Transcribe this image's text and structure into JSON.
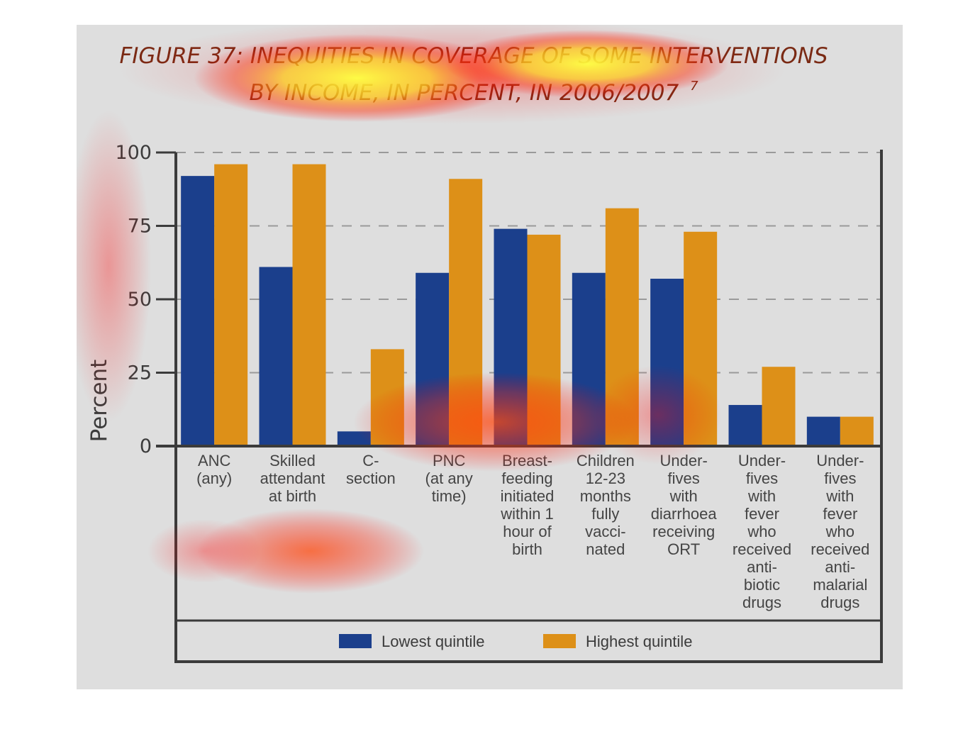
{
  "figure": {
    "title_line1": "FIGURE 37: INEQUITIES IN COVERAGE OF SOME INTERVENTIONS",
    "title_line2": "BY INCOME, IN PERCENT, IN 2006/2007",
    "title_ref": "7"
  },
  "colors": {
    "lowest": "#1b3f8c",
    "highest": "#dd9018",
    "panel": "#dedede",
    "axis": "#3b3b3b",
    "grid": "#9a9a9a"
  },
  "chart_data": {
    "type": "bar",
    "title": "FIGURE 37: INEQUITIES IN COVERAGE OF SOME INTERVENTIONS BY INCOME, IN PERCENT, IN 2006/2007",
    "xlabel": "",
    "ylabel": "Percent",
    "ylim": [
      0,
      100
    ],
    "yticks": [
      0,
      25,
      50,
      75,
      100
    ],
    "grid": "horizontal dashed",
    "legend_position": "bottom",
    "categories": [
      [
        "ANC",
        "(any)"
      ],
      [
        "Skilled",
        "attendant",
        "at birth"
      ],
      [
        "C-",
        "section"
      ],
      [
        "PNC",
        "(at any",
        "time)"
      ],
      [
        "Breast-",
        "feeding",
        "initiated",
        "within 1",
        "hour of",
        "birth"
      ],
      [
        "Children",
        "12-23",
        "months",
        "fully",
        "vacci-",
        "nated"
      ],
      [
        "Under-",
        "fives",
        "with",
        "diarrhoea",
        "receiving",
        "ORT"
      ],
      [
        "Under-",
        "fives",
        "with",
        "fever",
        "who",
        "received",
        "anti-",
        "biotic",
        "drugs"
      ],
      [
        "Under-",
        "fives",
        "with",
        "fever",
        "who",
        "received",
        "anti-",
        "malarial",
        "drugs"
      ]
    ],
    "series": [
      {
        "name": "Lowest quintile",
        "values": [
          92,
          61,
          5,
          59,
          74,
          59,
          57,
          14,
          10
        ]
      },
      {
        "name": "Highest quintile",
        "values": [
          96,
          96,
          33,
          91,
          72,
          81,
          73,
          27,
          10
        ]
      }
    ]
  }
}
